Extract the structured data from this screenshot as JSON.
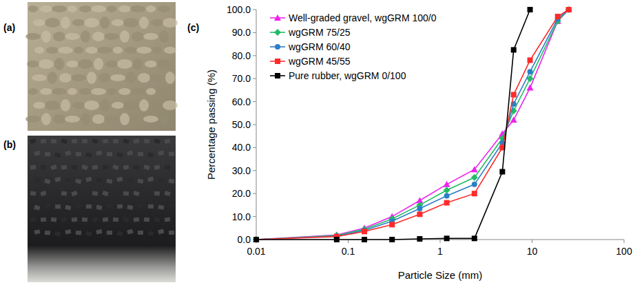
{
  "panel_labels": [
    "(a)",
    "(b)",
    "(c)"
  ],
  "chart_data": {
    "type": "line",
    "x_label": "Particle Size (mm)",
    "y_label": "Percentage passing (%)",
    "log": "x",
    "grid": false,
    "legend": "upper-left",
    "xlim": [
      0.01,
      100
    ],
    "xticks": [
      0.01,
      0.1,
      1,
      10,
      100
    ],
    "ylim": [
      0,
      100
    ],
    "yticks": [
      {
        "value": 0,
        "label": "0.0"
      },
      {
        "value": 10,
        "label": "10.0"
      },
      {
        "value": 20,
        "label": "20.0"
      },
      {
        "value": 30,
        "label": "30.0"
      },
      {
        "value": 40,
        "label": "40.0"
      },
      {
        "value": 50,
        "label": "50.0"
      },
      {
        "value": 60,
        "label": "60.0"
      },
      {
        "value": 70,
        "label": "70.0"
      },
      {
        "value": 80,
        "label": "80.0"
      },
      {
        "value": 90,
        "label": "90.0"
      },
      {
        "value": 100,
        "label": "100.0"
      }
    ],
    "x": [
      0.01,
      0.075,
      0.15,
      0.3,
      0.6,
      1.18,
      2.36,
      4.75,
      6.3,
      9.5,
      19,
      25
    ],
    "series": [
      {
        "name": "Well-graded gravel, wgGRM 100/0",
        "color": "#ee22ee",
        "marker": "triangle",
        "values": [
          0,
          2,
          5,
          10,
          17,
          24,
          30.5,
          46,
          52,
          66,
          95,
          100
        ]
      },
      {
        "name": "wgGRM 75/25",
        "color": "#22bb66",
        "marker": "diamond",
        "values": [
          0,
          1.8,
          4.5,
          9,
          15,
          21.5,
          27,
          44,
          56,
          70,
          95,
          100
        ]
      },
      {
        "name": "wgGRM 60/40",
        "color": "#2a7fc9",
        "marker": "circle",
        "values": [
          0,
          1.5,
          4,
          8,
          13.5,
          19,
          24,
          42,
          59,
          73,
          96,
          100
        ]
      },
      {
        "name": "wgGRM 45/55",
        "color": "#ff2a2a",
        "marker": "square",
        "values": [
          0,
          1.3,
          3.5,
          6.5,
          11,
          16,
          20,
          40,
          63,
          78,
          97,
          100
        ]
      },
      {
        "name": "Pure rubber, wgGRM 0/100",
        "color": "#000000",
        "marker": "square",
        "values": [
          0,
          0,
          0,
          0,
          0.3,
          0.5,
          0.5,
          29.5,
          82.5,
          100,
          null,
          null
        ]
      }
    ]
  }
}
